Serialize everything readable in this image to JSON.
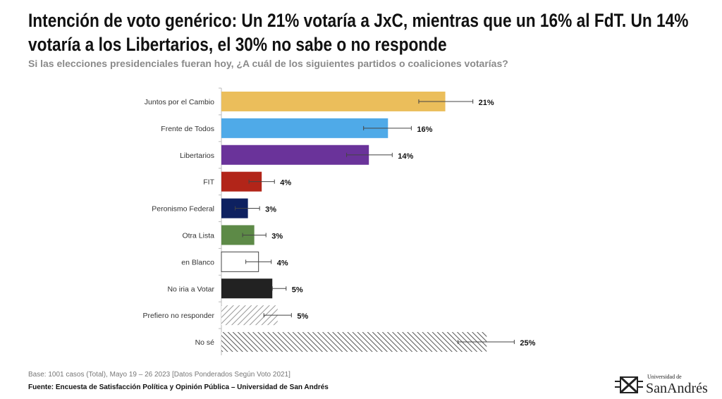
{
  "title": "Intención de voto genérico: Un 21% votaría a JxC, mientras que un 16% al FdT. Un 14% votaría a los Libertarios, el 30% no sabe o no responde",
  "subtitle": "Si las elecciones presidenciales fueran hoy, ¿A cuál de los siguientes partidos o coaliciones votarías?",
  "footer": {
    "base": "Base: 1001 casos (Total), Mayo 19 – 26 2023 [Datos Ponderados Según Voto 2021]",
    "source": "Fuente: Encuesta de Satisfacción Política y Opinión Pública – Universidad de San Andrés"
  },
  "logo": {
    "line1": "Universidad de",
    "line2": "SanAndrés"
  },
  "chart_data": {
    "type": "bar",
    "orientation": "horizontal",
    "categories": [
      "Juntos por el Cambio",
      "Frente de Todos",
      "Libertarios",
      "FIT",
      "Peronismo Federal",
      "Otra Lista",
      "en Blanco",
      "No iria a Votar",
      "Prefiero no responder",
      "No sé"
    ],
    "values": [
      21.1,
      15.7,
      13.9,
      3.8,
      2.5,
      3.1,
      3.5,
      4.8,
      5.3,
      25.0
    ],
    "data_labels": [
      "21%",
      "16%",
      "14%",
      "4%",
      "3%",
      "3%",
      "4%",
      "5%",
      "5%",
      "25%"
    ],
    "error_bars": [
      [
        18.6,
        23.7
      ],
      [
        13.4,
        17.9
      ],
      [
        11.8,
        16.1
      ],
      [
        2.6,
        5.0
      ],
      [
        1.3,
        3.6
      ],
      [
        2.0,
        4.2
      ],
      [
        2.3,
        4.7
      ],
      [
        4.8,
        6.1
      ],
      [
        4.0,
        6.6
      ],
      [
        22.3,
        27.6
      ]
    ],
    "colors": [
      "#EBBE5B",
      "#4FAAE8",
      "#6A339A",
      "#B22519",
      "#0E2160",
      "#5D8A47",
      "#FFFFFF",
      "#222222",
      "hatch-light",
      "hatch-dark"
    ],
    "xlim": [
      0,
      30
    ],
    "grid": false,
    "legend": "none",
    "xlabel": "",
    "ylabel": ""
  }
}
